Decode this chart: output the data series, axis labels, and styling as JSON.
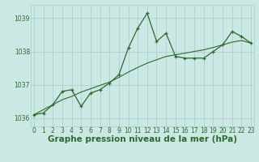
{
  "x": [
    0,
    1,
    2,
    3,
    4,
    5,
    6,
    7,
    8,
    9,
    10,
    11,
    12,
    13,
    14,
    15,
    16,
    17,
    18,
    19,
    20,
    21,
    22,
    23
  ],
  "y_main": [
    1036.1,
    1036.15,
    1036.4,
    1036.8,
    1036.85,
    1036.35,
    1036.75,
    1036.85,
    1037.05,
    1037.3,
    1038.1,
    1038.7,
    1039.15,
    1038.3,
    1038.55,
    1037.85,
    1037.8,
    1037.8,
    1037.8,
    1038.0,
    1038.2,
    1038.6,
    1038.45,
    1038.25
  ],
  "y_trend": [
    1036.1,
    1036.25,
    1036.4,
    1036.55,
    1036.65,
    1036.78,
    1036.88,
    1036.98,
    1037.08,
    1037.22,
    1037.38,
    1037.52,
    1037.65,
    1037.75,
    1037.85,
    1037.9,
    1037.95,
    1038.0,
    1038.05,
    1038.12,
    1038.2,
    1038.28,
    1038.33,
    1038.25
  ],
  "ylim": [
    1035.75,
    1039.4
  ],
  "yticks": [
    1036,
    1037,
    1038,
    1039
  ],
  "xticks": [
    0,
    1,
    2,
    3,
    4,
    5,
    6,
    7,
    8,
    9,
    10,
    11,
    12,
    13,
    14,
    15,
    16,
    17,
    18,
    19,
    20,
    21,
    22,
    23
  ],
  "xlim": [
    -0.3,
    23.3
  ],
  "line_color": "#2d6a2d",
  "bg_color": "#cce8e4",
  "grid_color": "#a8ccca",
  "xlabel": "Graphe pression niveau de la mer (hPa)",
  "tick_fontsize": 5.5,
  "label_fontsize": 7.5
}
